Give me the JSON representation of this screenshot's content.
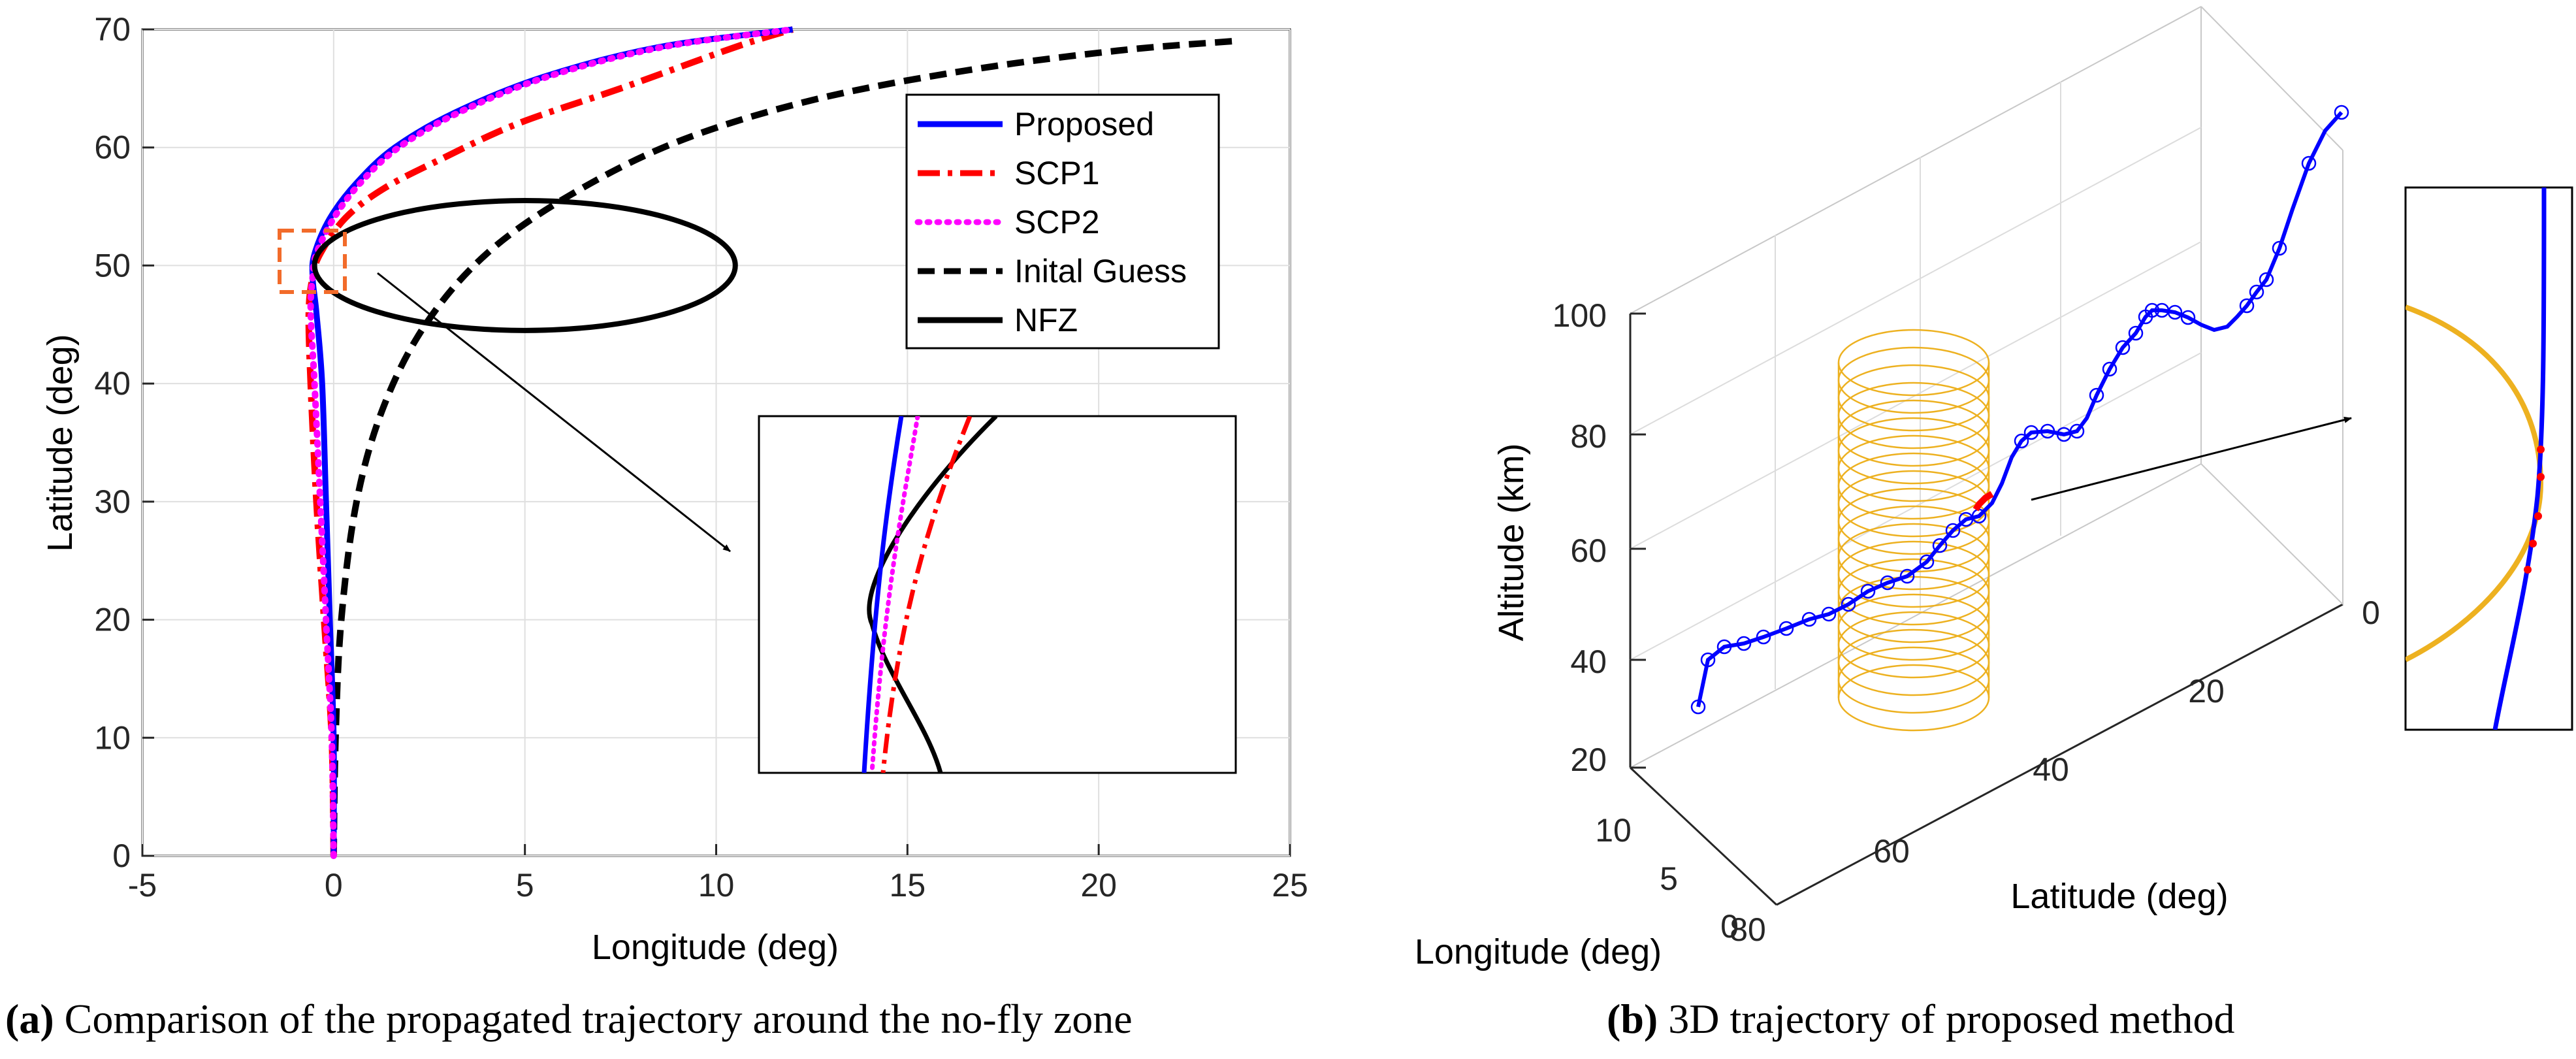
{
  "chart_data": [
    {
      "type": "line",
      "panel": "a",
      "caption_letter": "(a)",
      "caption_text": "Comparison of the propagated trajectory around the no-fly zone",
      "xlabel": "Longitude (deg)",
      "ylabel": "Latitude (deg)",
      "xlim": [
        -5,
        25
      ],
      "ylim": [
        0,
        70
      ],
      "xticks": [
        "-5",
        "0",
        "5",
        "10",
        "15",
        "20",
        "25"
      ],
      "yticks": [
        "0",
        "10",
        "20",
        "30",
        "40",
        "50",
        "60",
        "70"
      ],
      "grid": true,
      "legend_position": "top-right",
      "series": [
        {
          "name": "Proposed",
          "color": "#0000ff",
          "style": "solid",
          "x": [
            0,
            0,
            -0.1,
            -0.2,
            -0.3,
            -0.45,
            -0.55,
            -0.5,
            -0.1,
            0.6,
            1.6,
            3.2,
            5.5,
            8.5,
            12.0
          ],
          "y": [
            0,
            10,
            20,
            30,
            40,
            46,
            49,
            51,
            54,
            57,
            60,
            63,
            66,
            68.5,
            70
          ]
        },
        {
          "name": "SCP1",
          "color": "#ff0000",
          "style": "dashdot",
          "x": [
            0,
            -0.05,
            -0.25,
            -0.45,
            -0.6,
            -0.65,
            -0.55,
            -0.35,
            0.3,
            1.3,
            2.8,
            4.8,
            7.5,
            10.5,
            12.0
          ],
          "y": [
            0,
            10,
            20,
            30,
            40,
            46,
            49,
            51,
            54,
            56.5,
            59,
            62,
            65,
            68.5,
            70
          ]
        },
        {
          "name": "SCP2",
          "color": "#ff00ff",
          "style": "dotted",
          "x": [
            0,
            -0.05,
            -0.2,
            -0.35,
            -0.5,
            -0.6,
            -0.55,
            -0.45,
            0.0,
            0.7,
            1.7,
            3.3,
            5.6,
            8.6,
            12.0
          ],
          "y": [
            0,
            10,
            20,
            30,
            40,
            46,
            49,
            51,
            54,
            57,
            60,
            63,
            66,
            68.5,
            70
          ]
        },
        {
          "name": "Inital Guess",
          "color": "#000000",
          "style": "dashed",
          "x": [
            0,
            0.05,
            0.2,
            0.6,
            1.3,
            2.4,
            4.0,
            6.2,
            9.0,
            12.5,
            16.5,
            20.5,
            23.5
          ],
          "y": [
            0,
            10,
            20,
            30,
            38,
            45,
            51,
            56,
            60.5,
            64,
            66.5,
            68.2,
            69
          ]
        },
        {
          "name": "NFZ",
          "color": "#000000",
          "style": "solid",
          "ellipse": {
            "center": [
              5,
              50
            ],
            "rx": 5.5,
            "ry": 5.5
          }
        }
      ],
      "inset_note": "zoomed view of trajectories near NFZ boundary"
    },
    {
      "type": "line3d",
      "panel": "b",
      "caption_letter": "(b)",
      "caption_text": "3D trajectory of proposed method",
      "xlabel": "Longitude (deg)",
      "ylabel": "Latitude (deg)",
      "zlabel": "Altitude (km)",
      "xticks": [
        "0",
        "5",
        "10"
      ],
      "yticks": [
        "0",
        "20",
        "40",
        "60",
        "80"
      ],
      "zticks": [
        "20",
        "40",
        "60",
        "80",
        "100"
      ],
      "series": [
        {
          "name": "Proposed trajectory",
          "color": "#0000ff"
        },
        {
          "name": "No-fly zone cylinder",
          "color": "#edb120"
        }
      ]
    }
  ]
}
